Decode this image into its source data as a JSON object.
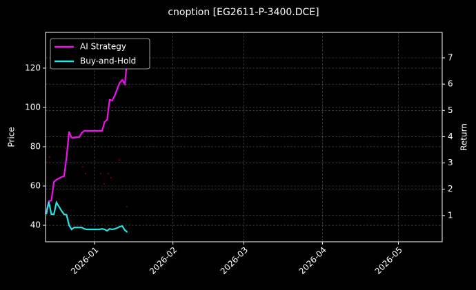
{
  "chart_data": {
    "type": "line",
    "title": "cnoption [EG2611-P-3400.DCE]",
    "ylabel": "Price",
    "y2label": "Return",
    "x": [
      -19,
      -18,
      -17,
      -16,
      -15,
      -14,
      -13,
      -12,
      -11,
      -10,
      -9,
      -8,
      -7,
      -6,
      -5,
      -4,
      -3,
      -2,
      -1,
      0,
      1,
      2,
      3,
      4,
      5,
      6,
      7,
      8,
      9,
      10,
      11,
      12,
      13
    ],
    "xlim": [
      -19.3,
      137.3
    ],
    "xticks": [
      {
        "value": 0,
        "label": "2026-01"
      },
      {
        "value": 31,
        "label": "2026-02"
      },
      {
        "value": 59,
        "label": "2026-03"
      },
      {
        "value": 90,
        "label": "2026-04"
      },
      {
        "value": 120,
        "label": "2026-05"
      }
    ],
    "ylim": [
      31.6,
      138.2
    ],
    "yticks": [
      40,
      60,
      80,
      100,
      120
    ],
    "y2lim": [
      0,
      7.97
    ],
    "y2ticks": [
      1,
      2,
      3,
      4,
      5,
      6,
      7
    ],
    "grid": true,
    "legend": "upper left",
    "series": [
      {
        "name": "AI Strategy",
        "color": "#ee11ee",
        "values": [
          46.7,
          52.3,
          52.6,
          62.1,
          63.2,
          63.9,
          64.6,
          64.9,
          74.7,
          87.7,
          84.6,
          84.6,
          84.9,
          84.9,
          87,
          88.1,
          88.1,
          88.1,
          88.1,
          88.1,
          88.1,
          88.1,
          88.1,
          92.6,
          93.7,
          103.9,
          103.5,
          106,
          109.5,
          112.6,
          114,
          111.9,
          124.9
        ]
      },
      {
        "name": "Buy-and-Hold",
        "color": "#22e5e5",
        "values": [
          45.6,
          51.9,
          45.6,
          45.6,
          51.6,
          49.5,
          47.4,
          45.6,
          45.3,
          40,
          37.9,
          38.9,
          38.9,
          38.9,
          38.9,
          38.2,
          37.9,
          37.9,
          37.9,
          37.9,
          37.9,
          37.9,
          38.2,
          37.9,
          37.2,
          38.2,
          37.9,
          38.2,
          38.6,
          39.3,
          39.6,
          37.5,
          36.5
        ]
      }
    ],
    "trade_points": {
      "color": "#8b0000",
      "x": [
        -17.7,
        -11.4,
        -4.6,
        -3.5,
        2.5,
        3.8,
        5.4,
        6.5,
        9.8,
        12.8
      ],
      "y": [
        74.7,
        79.3,
        69.8,
        66.3,
        66.3,
        61.1,
        66.3,
        64.2,
        73.3,
        49.5
      ]
    }
  }
}
